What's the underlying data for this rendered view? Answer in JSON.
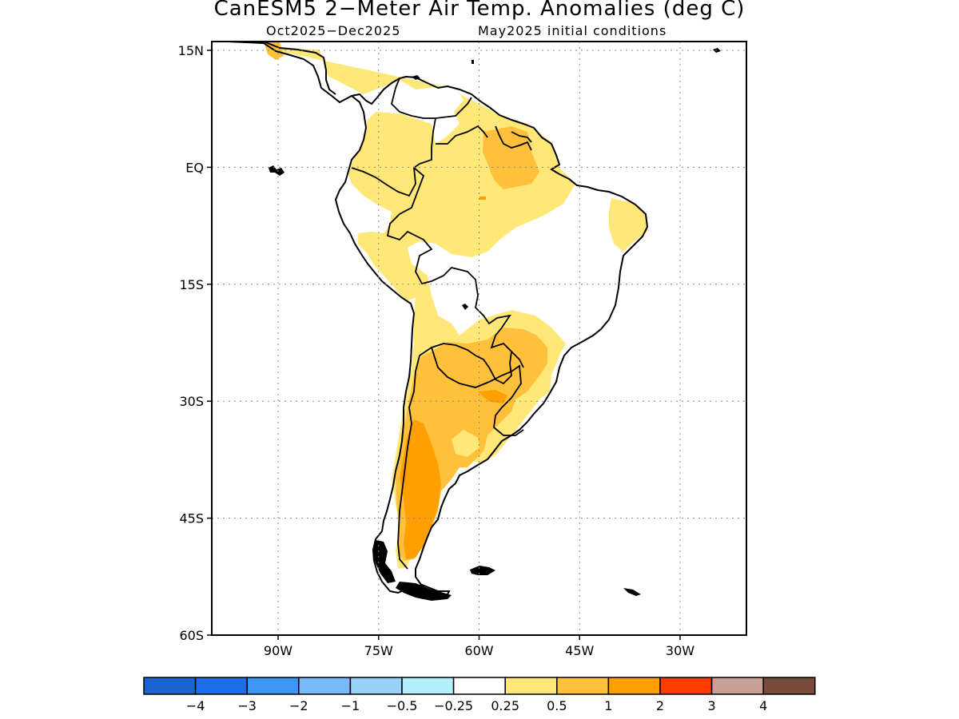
{
  "map": {
    "title": "CanESM5 2−Meter Air Temp. Anomalies (deg C)",
    "period": "Oct2025−Dec2025",
    "init": "May2025 initial conditions",
    "lat_labels": [
      {
        "lat": 15,
        "label": "15N"
      },
      {
        "lat": 0,
        "label": "EQ"
      },
      {
        "lat": -15,
        "label": "15S"
      },
      {
        "lat": -30,
        "label": "30S"
      },
      {
        "lat": -45,
        "label": "45S"
      },
      {
        "lat": -60,
        "label": "60S"
      }
    ],
    "lon_labels": [
      {
        "lon": -90,
        "label": "90W"
      },
      {
        "lon": -75,
        "label": "75W"
      },
      {
        "lon": -60,
        "label": "60W"
      },
      {
        "lon": -45,
        "label": "45W"
      },
      {
        "lon": -30,
        "label": "30W"
      }
    ],
    "lon_range": [
      -100,
      -20
    ],
    "lat_range": [
      -60,
      16
    ],
    "colorbar": {
      "colors": [
        "#1a64d2",
        "#1e6eeb",
        "#3c96f5",
        "#78b9fa",
        "#96d2fa",
        "#b4f0fa",
        "#ffffff",
        "#ffe878",
        "#ffc03c",
        "#ffa000",
        "#ff3c00",
        "#c8a096",
        "#784b3c"
      ],
      "labels": [
        "−4",
        "−3",
        "−2",
        "−1",
        "−0.5",
        "−0.25",
        "0.25",
        "0.5",
        "1",
        "2",
        "3",
        "4"
      ]
    },
    "anomaly_colors": {
      "0.25-0.5": "#ffe878",
      "0.5-1": "#ffc03c",
      "1-2": "#ffa000",
      "-0.25 to -0.5 (tiny)": "#b4f0fa"
    }
  }
}
